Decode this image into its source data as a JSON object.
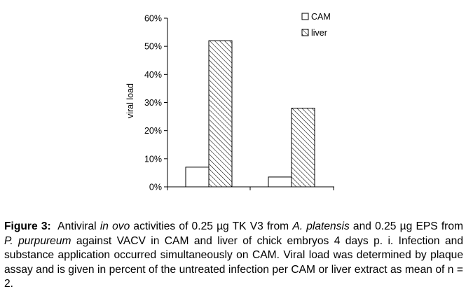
{
  "chart_data": {
    "type": "bar",
    "ylabel": "viral load",
    "ylim": [
      0,
      60
    ],
    "y_ticks": [
      0,
      10,
      20,
      30,
      40,
      50,
      60
    ],
    "y_tick_labels": [
      "0%",
      "10%",
      "20%",
      "30%",
      "40%",
      "50%",
      "60%"
    ],
    "categories": [
      "",
      ""
    ],
    "series": [
      {
        "name": "CAM",
        "values": [
          7,
          3.5
        ],
        "fill": "#ffffff",
        "pattern": "none"
      },
      {
        "name": "liver",
        "values": [
          52,
          28
        ],
        "fill": "#ffffff",
        "pattern": "diagonal-hatch"
      }
    ],
    "legend": "top-right",
    "grid": false
  },
  "caption": {
    "label": "Figure 3:",
    "t1": "Antiviral ",
    "i1": "in ovo",
    "t2": " activities of 0.25 µg TK V3 from ",
    "i2": "A. platensis",
    "t3": " and 0.25 µg EPS from ",
    "i3": "P. purpureum",
    "t4": " against VACV in CAM and liver of chick embryos 4 days p. i. Infection and substance application occurred simultaneously on CAM. Viral load was determined by plaque assay and is given in percent of the untreated infection per CAM or liver extract as mean of n = 2."
  }
}
